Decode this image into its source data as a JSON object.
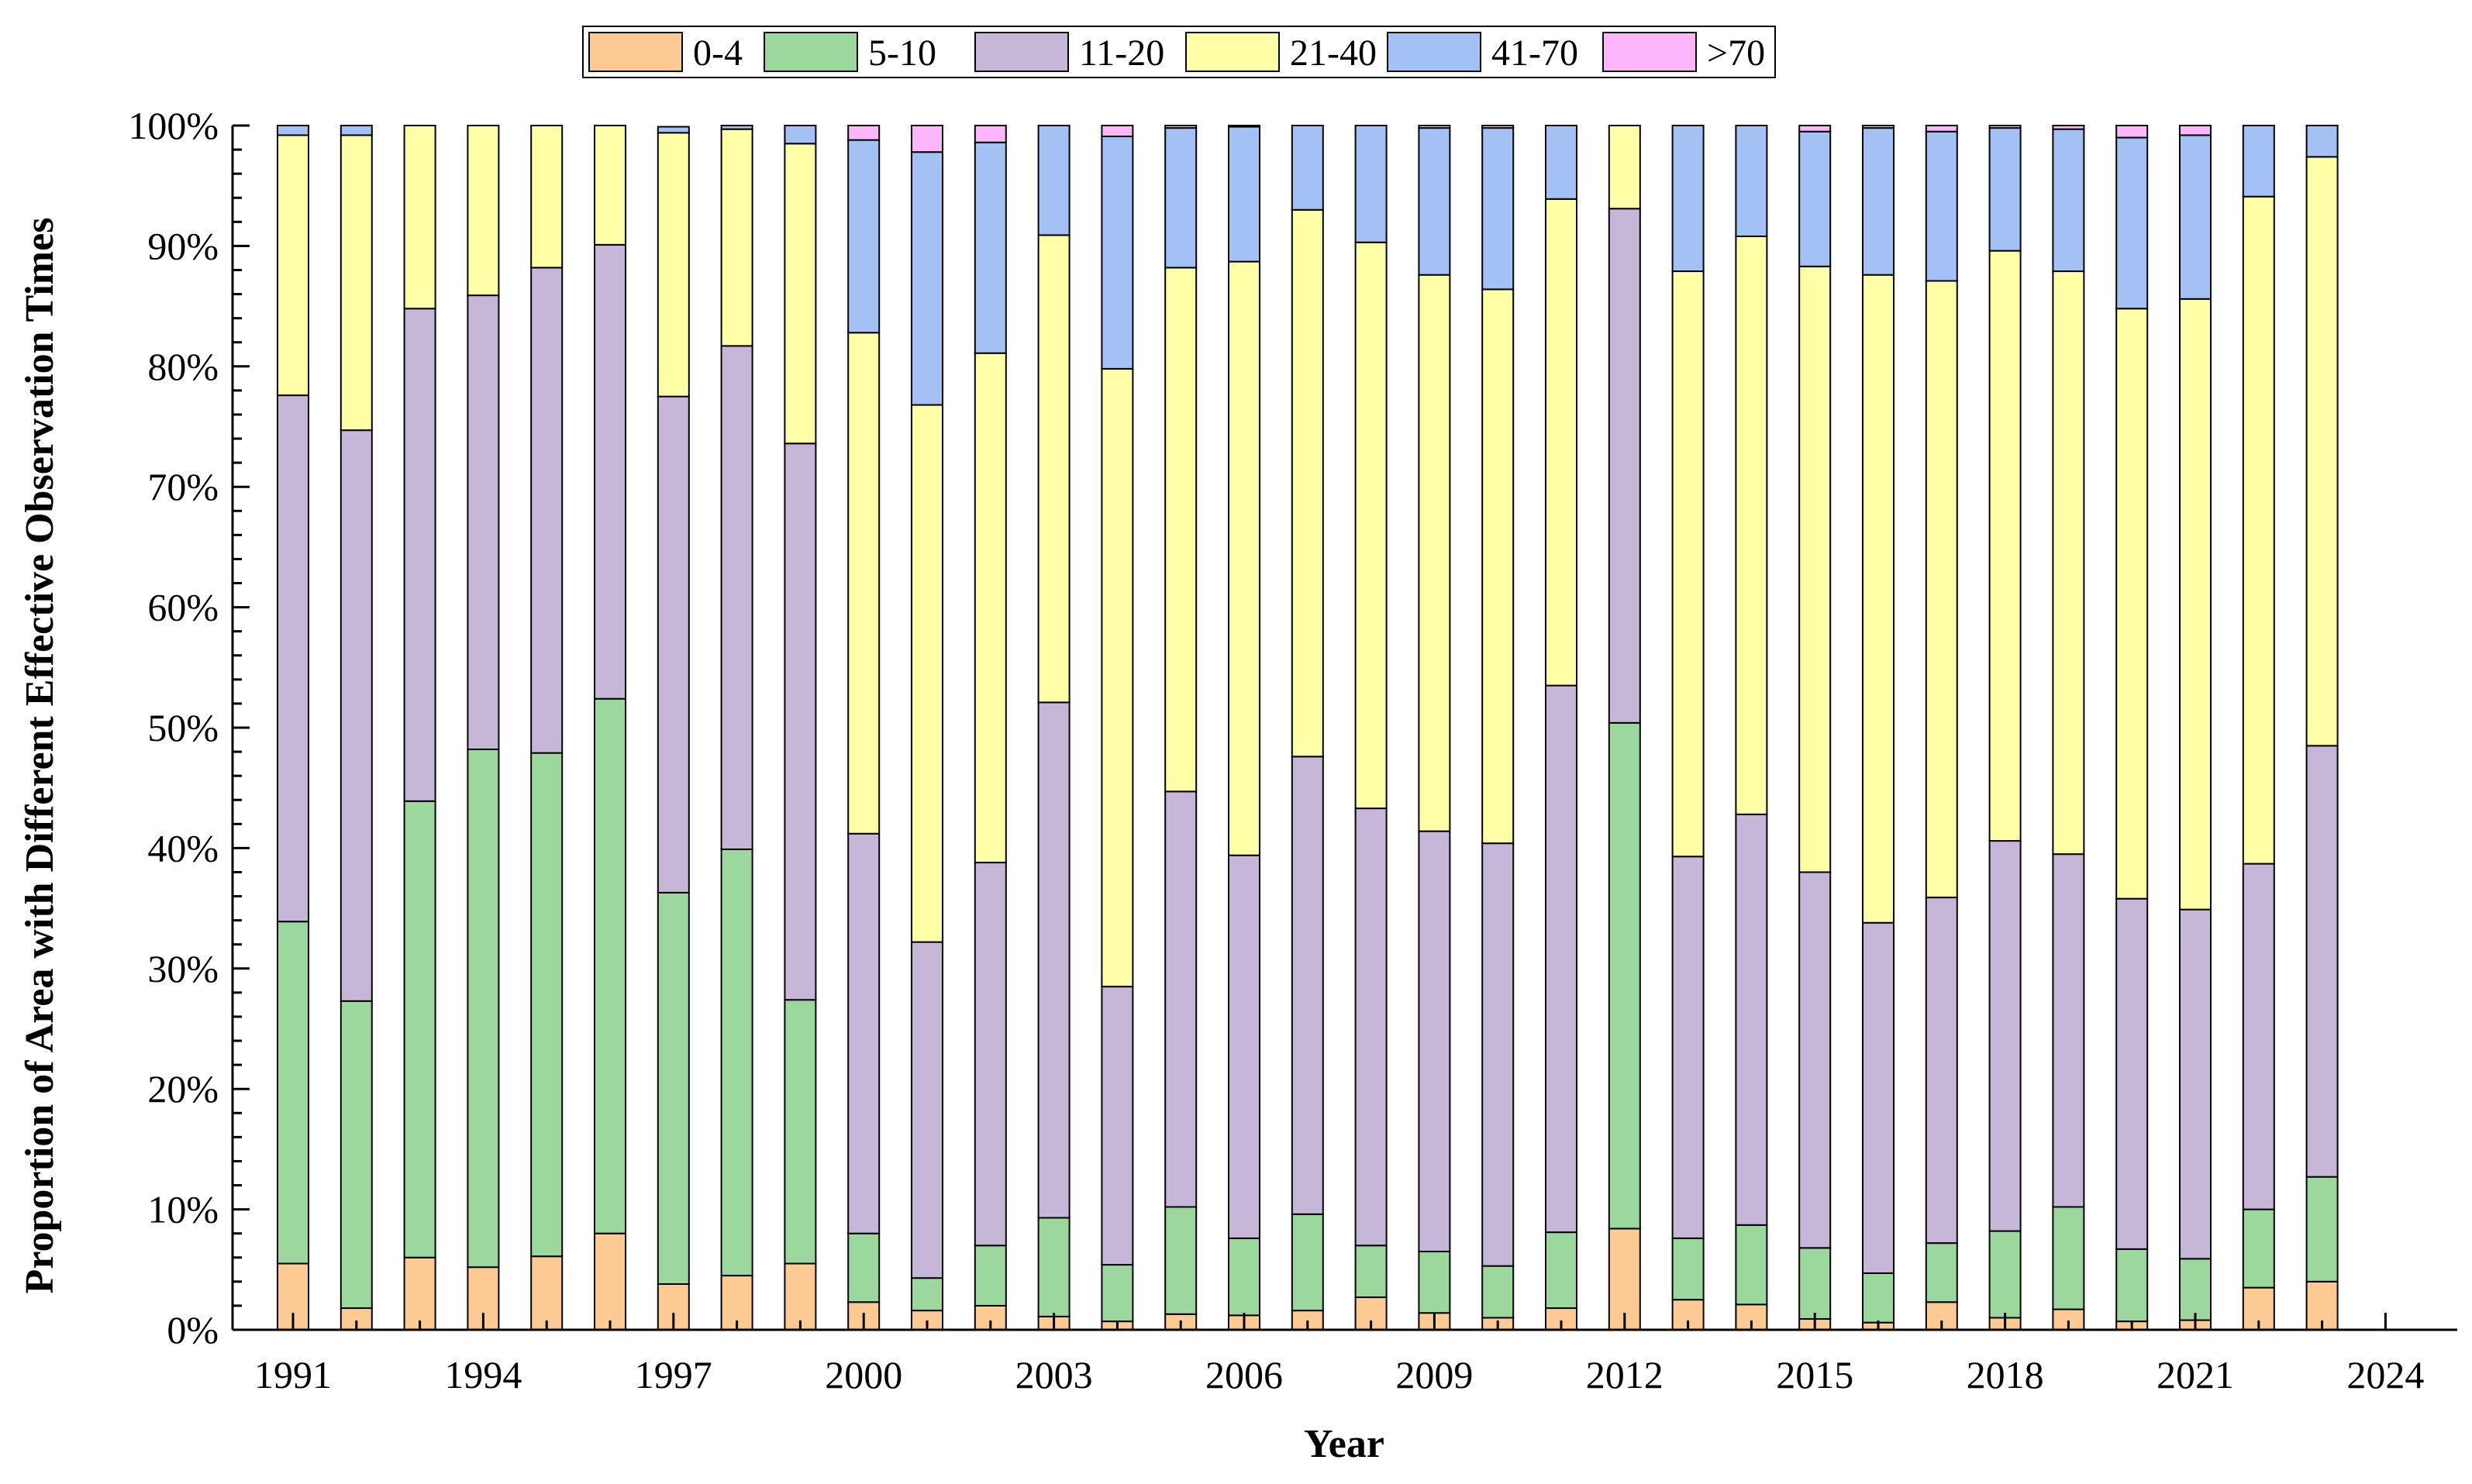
{
  "chart_data": {
    "type": "bar",
    "stacked": true,
    "title": "",
    "xlabel": "Year",
    "ylabel": "Proportion of Area with Different Effective Observation Times",
    "ylim": [
      0,
      100
    ],
    "y_ticks": [
      "0%",
      "10%",
      "20%",
      "30%",
      "40%",
      "50%",
      "60%",
      "70%",
      "80%",
      "90%",
      "100%"
    ],
    "x_tick_labels": [
      "1991",
      "1994",
      "1997",
      "2000",
      "2003",
      "2006",
      "2009",
      "2012",
      "2015",
      "2018",
      "2021",
      "2024"
    ],
    "legend_position": "top",
    "categories": [
      "1991",
      "1992",
      "1993",
      "1994",
      "1995",
      "1996",
      "1997",
      "1998",
      "1999",
      "2000",
      "2001",
      "2002",
      "2003",
      "2004",
      "2005",
      "2006",
      "2007",
      "2008",
      "2009",
      "2010",
      "2011",
      "2012",
      "2013",
      "2014",
      "2015",
      "2016",
      "2017",
      "2018",
      "2019",
      "2020",
      "2021",
      "2022",
      "2023"
    ],
    "series": [
      {
        "name": "0-4",
        "color": "#FDCA93",
        "values": [
          5.5,
          1.8,
          6.0,
          5.2,
          6.1,
          8.0,
          3.8,
          4.5,
          5.5,
          2.3,
          1.6,
          2.0,
          1.1,
          0.7,
          1.3,
          1.2,
          1.6,
          2.7,
          1.4,
          1.0,
          1.8,
          8.4,
          2.5,
          2.1,
          0.9,
          0.6,
          2.3,
          1.0,
          1.7,
          0.7,
          0.8,
          3.5,
          4.0
        ]
      },
      {
        "name": "5-10",
        "color": "#9CD89D",
        "values": [
          28.4,
          25.5,
          37.9,
          43.0,
          41.8,
          44.4,
          32.5,
          35.4,
          21.9,
          5.7,
          2.7,
          5.0,
          8.2,
          4.7,
          8.9,
          6.4,
          8.0,
          4.3,
          5.1,
          4.3,
          6.3,
          42.0,
          5.1,
          6.6,
          5.9,
          4.1,
          4.9,
          7.2,
          8.5,
          6.0,
          5.1,
          6.5,
          8.7
        ]
      },
      {
        "name": "11-20",
        "color": "#C6B7D9",
        "values": [
          43.7,
          47.4,
          40.9,
          37.7,
          40.3,
          37.7,
          41.2,
          41.8,
          46.2,
          33.2,
          27.9,
          31.8,
          42.8,
          23.1,
          34.5,
          31.8,
          38.0,
          36.3,
          34.9,
          35.1,
          45.4,
          42.7,
          31.7,
          34.1,
          31.2,
          29.1,
          28.7,
          32.4,
          29.3,
          29.1,
          29.0,
          28.7,
          35.8
        ]
      },
      {
        "name": "21-40",
        "color": "#FFFFA8",
        "values": [
          21.6,
          24.5,
          15.2,
          14.1,
          11.8,
          9.9,
          21.9,
          18.0,
          24.9,
          41.6,
          44.6,
          42.3,
          38.8,
          51.3,
          43.5,
          49.3,
          45.4,
          47.0,
          46.2,
          46.0,
          40.4,
          6.9,
          48.6,
          48.0,
          50.3,
          53.8,
          51.2,
          49.0,
          48.4,
          49.0,
          50.7,
          55.4,
          48.9
        ]
      },
      {
        "name": "41-70",
        "color": "#A4C1F5",
        "values": [
          0.8,
          0.8,
          0.0,
          0.0,
          0.0,
          0.0,
          0.5,
          0.3,
          1.5,
          16.0,
          21.0,
          17.5,
          9.1,
          19.3,
          11.6,
          11.2,
          7.0,
          9.7,
          12.2,
          13.4,
          6.1,
          0.0,
          12.1,
          9.2,
          11.2,
          12.2,
          12.4,
          10.2,
          11.8,
          14.2,
          13.6,
          5.9,
          2.6
        ]
      },
      {
        "name": ">70",
        "color": "#FDB6FA",
        "values": [
          0.0,
          0.0,
          0.0,
          0.0,
          0.0,
          0.0,
          0.0,
          0.0,
          0.0,
          1.2,
          2.2,
          1.4,
          0.0,
          0.9,
          0.2,
          0.1,
          0.0,
          0.0,
          0.2,
          0.2,
          0.0,
          0.0,
          0.0,
          0.0,
          0.5,
          0.2,
          0.5,
          0.2,
          0.3,
          1.0,
          0.8,
          0.0,
          0.0
        ]
      }
    ]
  }
}
